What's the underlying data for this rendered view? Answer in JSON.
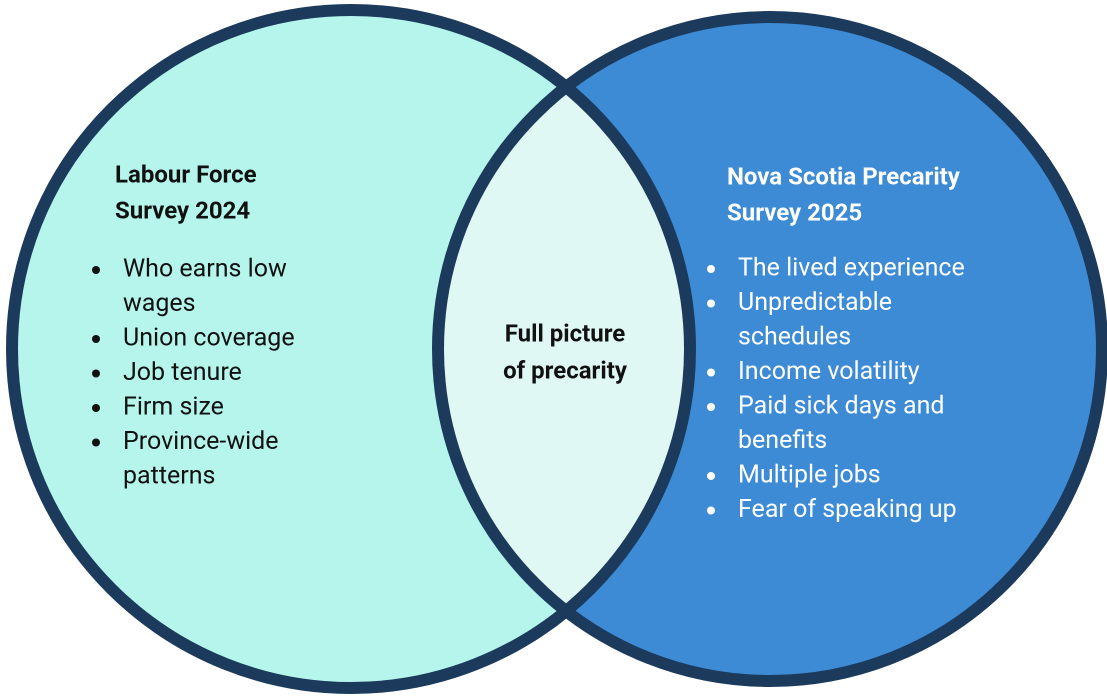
{
  "left": {
    "title": [
      "Labour Force",
      "Survey 2024"
    ],
    "items": [
      [
        "Who earns low",
        "wages"
      ],
      [
        "Union coverage"
      ],
      [
        "Job tenure"
      ],
      [
        "Firm size"
      ],
      [
        "Province-wide",
        "patterns"
      ]
    ]
  },
  "center": {
    "label": [
      "Full picture",
      "of precarity"
    ]
  },
  "right": {
    "title": [
      "Nova Scotia Precarity",
      "Survey 2025"
    ],
    "items": [
      [
        "The lived experience"
      ],
      [
        "Unpredictable",
        "schedules"
      ],
      [
        "Income volatility"
      ],
      [
        "Paid sick days and",
        "benefits"
      ],
      [
        "Multiple jobs"
      ],
      [
        "Fear of speaking up"
      ]
    ]
  }
}
